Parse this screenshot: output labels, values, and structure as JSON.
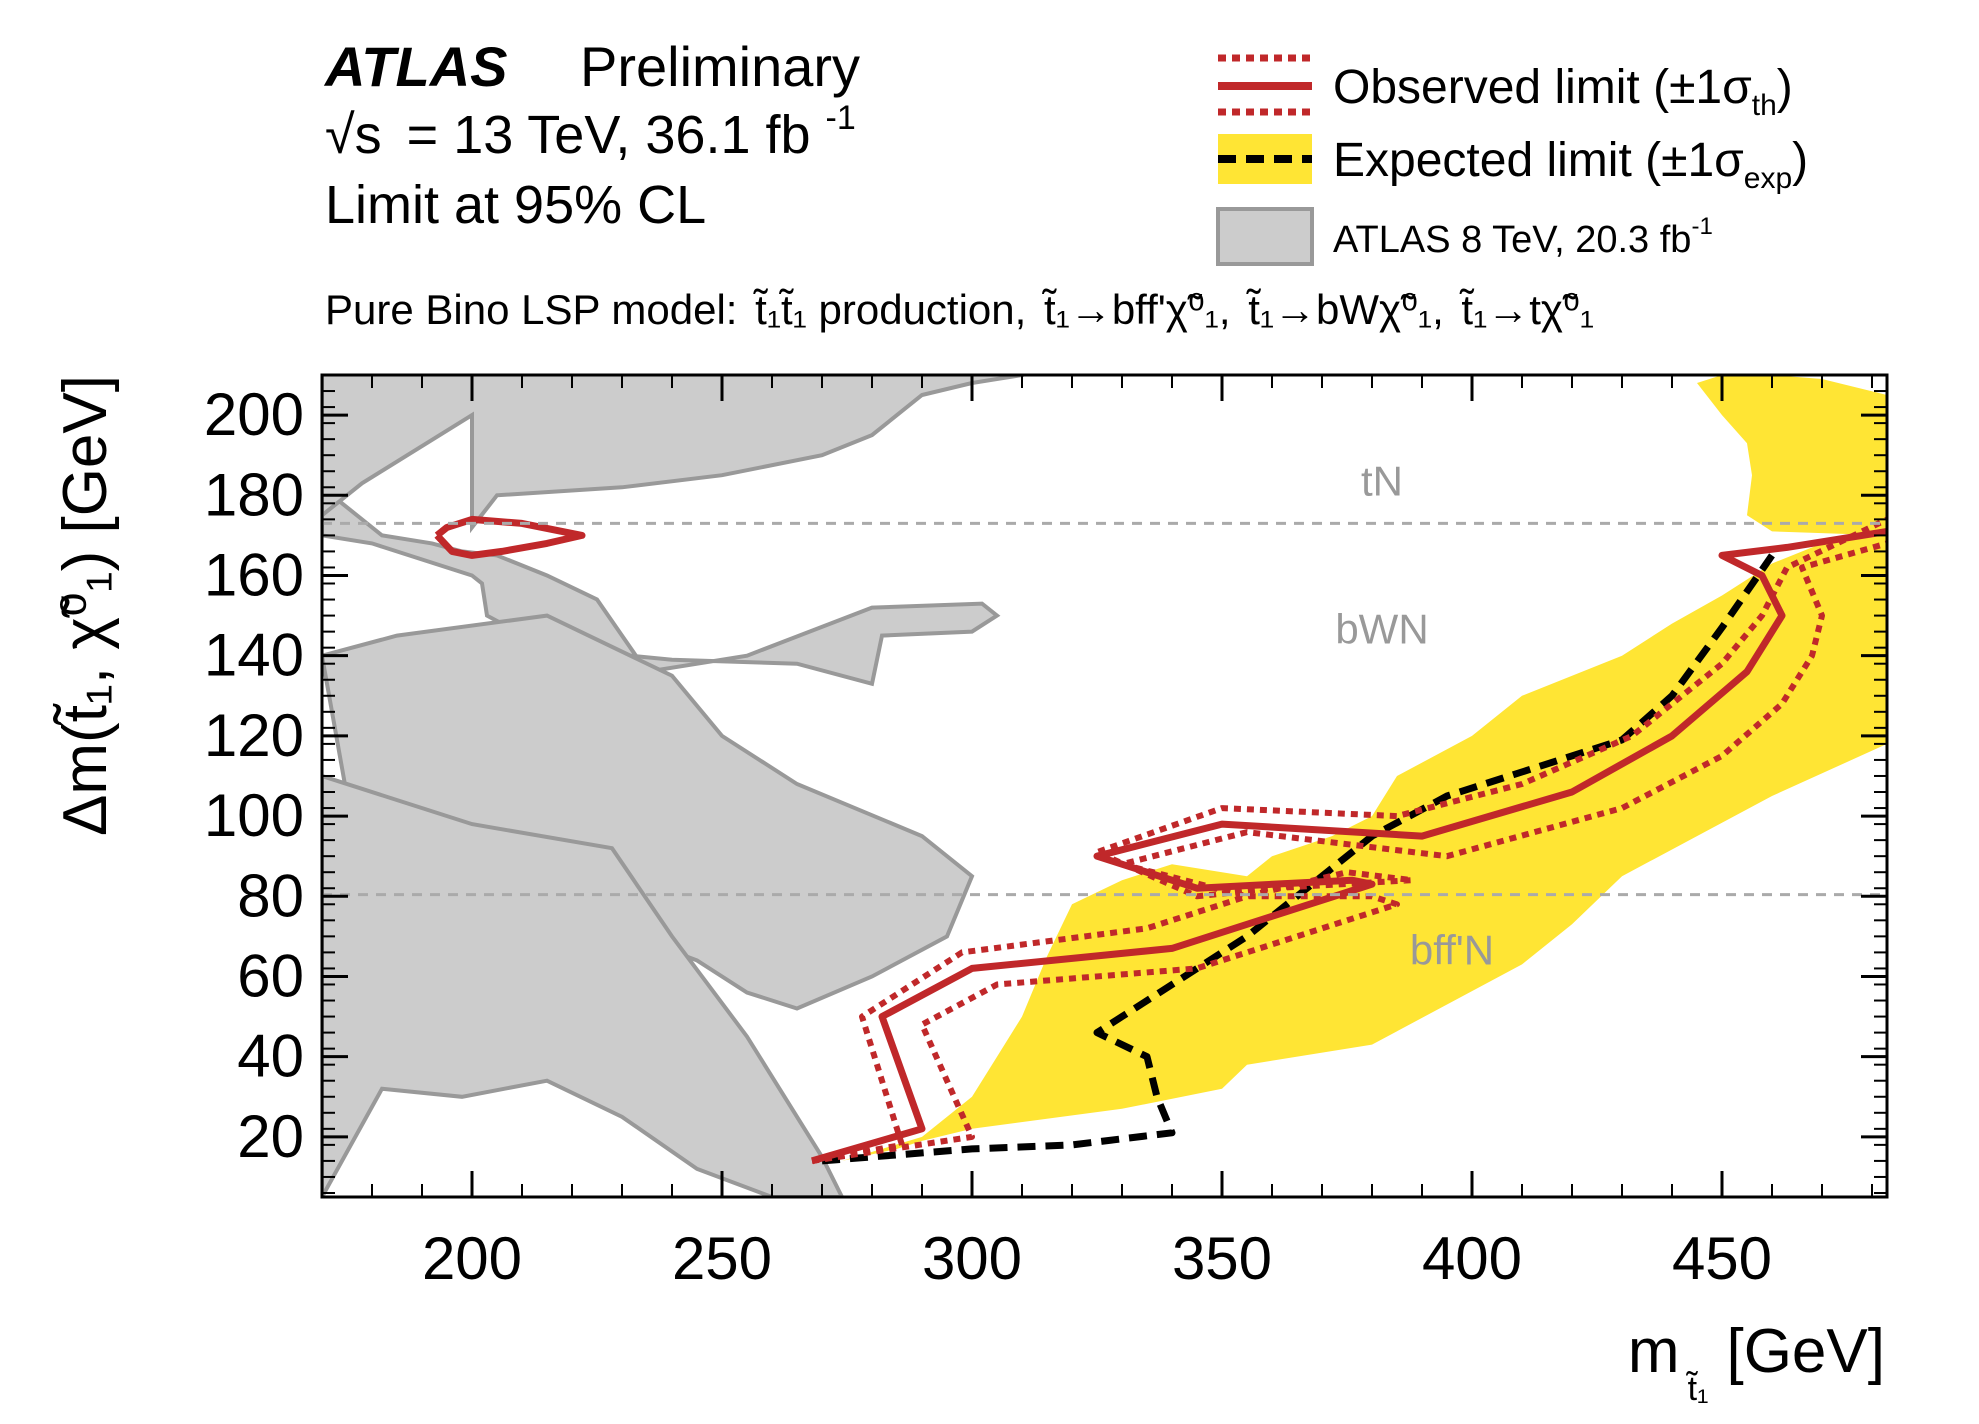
{
  "header": {
    "atlas": "ATLAS",
    "preliminary": "Preliminary",
    "energy_sqrt": "√s",
    "energy_text": "= 13 TeV, 36.1 fb",
    "energy_sup": "-1",
    "limit_text": "Limit at 95% CL",
    "model_prefix": "Pure Bino LSP model:",
    "model_production": "t̃₁t̃₁ production,",
    "model_decay1": "t̃₁→bff'χ̃⁰₁,",
    "model_decay2": "t̃₁→bWχ̃⁰₁,",
    "model_decay3": "t̃₁→tχ̃⁰₁"
  },
  "legend": {
    "observed_main": "Observed limit (±1σ",
    "observed_sub": "th",
    "observed_close": ")",
    "expected_main": "Expected limit (±1σ",
    "expected_sub": "exp",
    "expected_close": ")",
    "atlas8_main": "ATLAS 8 TeV, 20.3 fb",
    "atlas8_sup": "-1"
  },
  "colors": {
    "observed": "#c0282a",
    "expected": "#000000",
    "band": "#ffe534",
    "atlas8_fill": "#cccccc",
    "atlas8_line": "#999999",
    "region_line": "#aaaaaa",
    "region_text": "#999999"
  },
  "chart_data": {
    "type": "line",
    "title": "",
    "xlabel": "m",
    "xlabel_sub": "t̃₁",
    "xlabel_unit": "[GeV]",
    "ylabel": "Δm(t̃₁, χ̃⁰₁) [GeV]",
    "xlim": [
      170,
      483
    ],
    "ylim": [
      5,
      210
    ],
    "x_ticks": [
      200,
      250,
      300,
      350,
      400,
      450
    ],
    "y_ticks": [
      20,
      40,
      60,
      80,
      100,
      120,
      140,
      160,
      180,
      200
    ],
    "regions": [
      {
        "label": "tN",
        "boundary": 173,
        "label_x": 382,
        "label_y": 180
      },
      {
        "label": "bWN",
        "label_x": 382,
        "label_y": 143
      },
      {
        "label": "bff'N",
        "boundary": 80.4,
        "label_x": 396,
        "label_y": 63
      }
    ],
    "series": [
      {
        "name": "Expected limit ±1σ band",
        "kind": "band",
        "x": [
          274,
          285,
          290,
          300,
          330,
          350,
          355,
          380,
          395,
          410,
          420,
          430,
          445,
          460,
          483,
          483,
          470,
          460,
          450,
          440,
          430,
          410,
          400,
          385,
          380,
          372,
          360,
          355,
          340,
          330,
          320,
          315,
          310,
          305,
          300,
          290,
          274
        ],
        "y": [
          14,
          17,
          19,
          22,
          27,
          32,
          38,
          43,
          53,
          63,
          73,
          85,
          95,
          105,
          118,
          170,
          168,
          163,
          155,
          148,
          140,
          130,
          120,
          110,
          100,
          95,
          90,
          85,
          88,
          84,
          78,
          65,
          50,
          40,
          30,
          20,
          14
        ]
      },
      {
        "name": "Expected limit (high-Δm segment)",
        "kind": "band",
        "x": [
          445,
          450,
          455,
          456,
          455,
          460,
          483,
          483,
          470,
          460,
          456,
          450,
          445
        ],
        "y": [
          208,
          200,
          193,
          185,
          175,
          171,
          170,
          205,
          209,
          210,
          210,
          210,
          208
        ]
      },
      {
        "name": "Expected limit",
        "kind": "line",
        "style": "dashed",
        "x": [
          270,
          300,
          320,
          340,
          337,
          335,
          325,
          330,
          355,
          380,
          395,
          430,
          440,
          450,
          460
        ],
        "y": [
          14,
          17,
          18,
          21,
          30,
          40,
          46,
          50,
          70,
          95,
          105,
          119,
          130,
          147,
          165
        ]
      },
      {
        "name": "Observed limit",
        "kind": "line",
        "style": "solid",
        "x": [
          268,
          290,
          282,
          300,
          340,
          360,
          380,
          376,
          345,
          325,
          350,
          390,
          420,
          440,
          455,
          462,
          458,
          450,
          463,
          483
        ],
        "y": [
          14,
          22,
          50,
          62,
          67,
          75,
          83,
          84,
          82,
          90,
          98,
          95,
          106,
          120,
          136,
          150,
          160,
          165,
          167,
          171
        ]
      },
      {
        "name": "Observed limit +1σ(th)",
        "kind": "line",
        "style": "dotted",
        "x": [
          268,
          286,
          278,
          298,
          335,
          355,
          375,
          388,
          360,
          345,
          325,
          350,
          385,
          410,
          432,
          450,
          458,
          463,
          483
        ],
        "y": [
          14,
          18,
          50,
          66,
          72,
          80,
          86,
          84,
          82,
          80,
          91,
          102,
          100,
          108,
          120,
          138,
          150,
          162,
          174
        ]
      },
      {
        "name": "Observed limit −1σ(th)",
        "kind": "line",
        "style": "dotted",
        "x": [
          268,
          300,
          290,
          305,
          345,
          365,
          385,
          380,
          355,
          330,
          355,
          395,
          430,
          450,
          462,
          468,
          470,
          466,
          483
        ],
        "y": [
          14,
          20,
          48,
          58,
          62,
          70,
          78,
          80,
          80,
          88,
          96,
          90,
          102,
          115,
          128,
          140,
          150,
          162,
          168
        ]
      },
      {
        "name": "ATLAS 8 TeV, 20.3 fb-1 (upper region)",
        "kind": "area",
        "x": [
          170,
          170,
          180,
          195,
          200,
          202,
          203,
          215,
          240,
          265,
          280,
          282,
          300,
          305,
          302,
          280,
          255,
          235,
          225,
          215,
          205,
          198,
          192,
          182,
          170
        ],
        "y": [
          182,
          170,
          168,
          162,
          160,
          158,
          150,
          142,
          139,
          138,
          133,
          145,
          146,
          150,
          153,
          152,
          140,
          136,
          154,
          160,
          165,
          166,
          168,
          170,
          182
        ]
      },
      {
        "name": "ATLAS 8 TeV, 20.3 fb-1 (bands)",
        "kind": "area",
        "x": [
          170,
          185,
          215,
          240,
          250,
          265,
          290,
          300,
          295,
          280,
          265,
          255,
          245,
          228,
          210,
          190,
          175,
          170
        ],
        "y": [
          140,
          145,
          150,
          135,
          120,
          108,
          95,
          85,
          70,
          60,
          52,
          56,
          64,
          72,
          82,
          92,
          105,
          140
        ]
      },
      {
        "name": "ATLAS 8 TeV, 20.3 fb-1 (lower region)",
        "kind": "area",
        "x": [
          170,
          170,
          200,
          228,
          240,
          255,
          270,
          274,
          260,
          245,
          230,
          215,
          198,
          182,
          170
        ],
        "y": [
          5,
          110,
          98,
          92,
          70,
          45,
          15,
          5,
          5,
          12,
          25,
          34,
          30,
          32,
          5
        ]
      },
      {
        "name": "ATLAS 8 TeV, 20.3 fb-1 (top-left)",
        "kind": "area",
        "x": [
          170,
          178,
          200,
          200,
          205,
          230,
          250,
          270,
          280,
          290,
          300,
          310,
          310,
          170
        ],
        "y": [
          175,
          183,
          200,
          172,
          180,
          182,
          185,
          190,
          195,
          205,
          208,
          210,
          212,
          212
        ]
      },
      {
        "name": "Small observed island",
        "kind": "line",
        "style": "solid",
        "x": [
          193,
          195,
          200,
          210,
          222,
          215,
          206,
          200,
          196,
          193
        ],
        "y": [
          170,
          172,
          174,
          173,
          170,
          168,
          166,
          165,
          166,
          170
        ]
      }
    ]
  }
}
